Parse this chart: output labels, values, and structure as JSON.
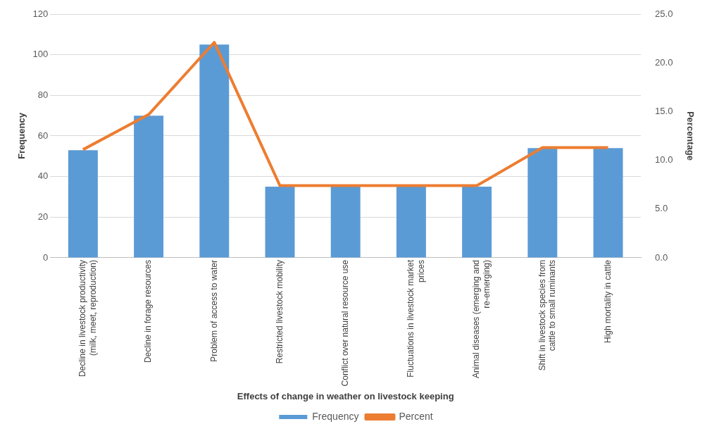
{
  "chart_data": {
    "type": "bar",
    "xlabel": "Effects of change in weather on livestock keeping",
    "ylabel": "Frequency",
    "y2label": "Percentage",
    "categories": [
      "Decline in livestock productivity (milk, meet, reproduction)",
      "Decline in forage resources",
      "Problem of access to water",
      "Restricted livestock mobility",
      "Conflict over natural resource use",
      "Fluctuations in livestock market prices",
      "Animal diseases (emerging and re-emerging)",
      "Shift in livestock species from cattle to small ruminants",
      "High mortality in cattle"
    ],
    "series": [
      {
        "name": "Frequency",
        "color": "#5b9bd5",
        "values": [
          53,
          70,
          105,
          35,
          35,
          35,
          35,
          54,
          54
        ]
      },
      {
        "name": "Percent",
        "type": "line",
        "axis": "y2",
        "color": "#ed7d31",
        "values": [
          11.1,
          14.7,
          22.1,
          7.4,
          7.4,
          7.4,
          7.4,
          11.3,
          11.3
        ]
      }
    ],
    "ylim": [
      0,
      120
    ],
    "yticks": [
      0,
      20,
      40,
      60,
      80,
      100,
      120
    ],
    "y2lim": [
      0,
      25
    ],
    "y2ticks": [
      {
        "value": 0,
        "label": "0.0"
      },
      {
        "value": 5,
        "label": "5.0"
      },
      {
        "value": 10,
        "label": "10.0"
      },
      {
        "value": 15,
        "label": "15.0"
      },
      {
        "value": 20,
        "label": "20.0"
      },
      {
        "value": 25,
        "label": "25.0"
      }
    ],
    "grid": "y",
    "legend": "bottom",
    "marker": "none"
  }
}
